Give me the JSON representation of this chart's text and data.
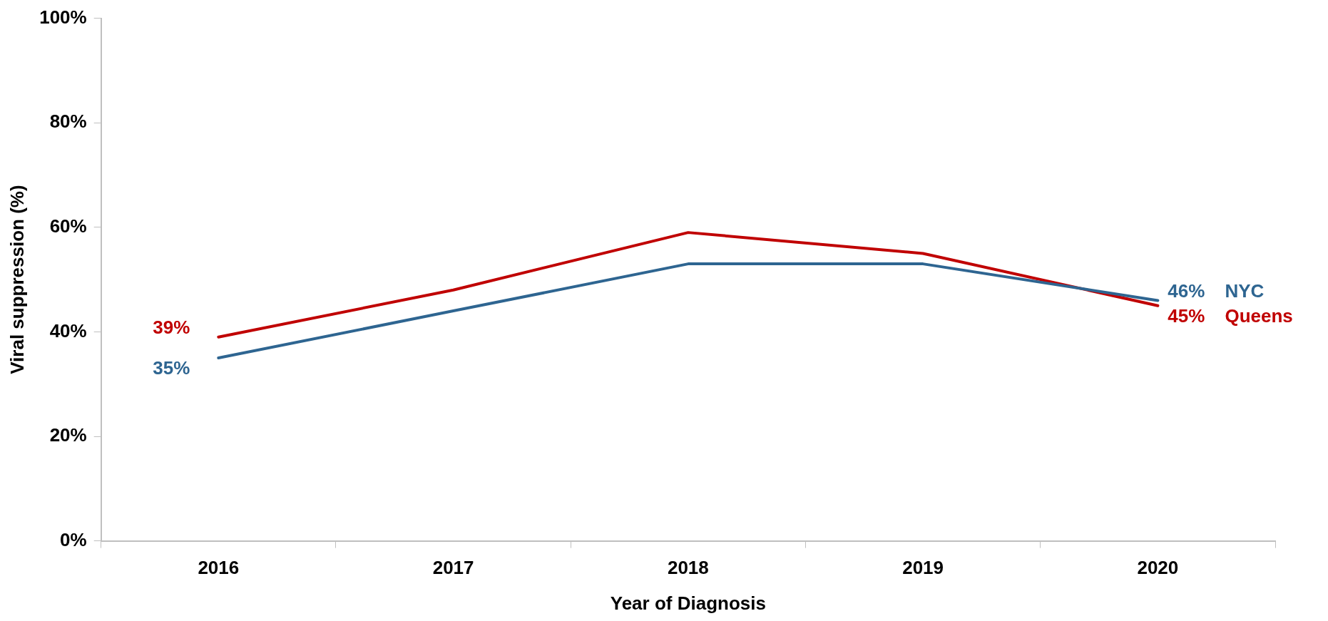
{
  "chart_data": {
    "type": "line",
    "xlabel": "Year of Diagnosis",
    "ylabel": "Viral suppression (%)",
    "categories": [
      "2016",
      "2017",
      "2018",
      "2019",
      "2020"
    ],
    "series": [
      {
        "name": "NYC",
        "color": "#2e6591",
        "values": [
          35,
          44,
          53,
          53,
          46
        ],
        "value_labels": [
          "35%",
          null,
          null,
          null,
          "46%"
        ]
      },
      {
        "name": "Queens",
        "color": "#c00000",
        "values": [
          39,
          48,
          59,
          55,
          45
        ],
        "value_labels": [
          "39%",
          null,
          null,
          null,
          "45%"
        ]
      }
    ],
    "ylim": [
      0,
      100
    ],
    "yticks": [
      {
        "value": 0,
        "label": "0%"
      },
      {
        "value": 20,
        "label": "20%"
      },
      {
        "value": 40,
        "label": "40%"
      },
      {
        "value": 60,
        "label": "60%"
      },
      {
        "value": 80,
        "label": "80%"
      },
      {
        "value": 100,
        "label": "100%"
      }
    ],
    "grid": false,
    "legend": false,
    "marker": "none",
    "line_style": "solid"
  }
}
